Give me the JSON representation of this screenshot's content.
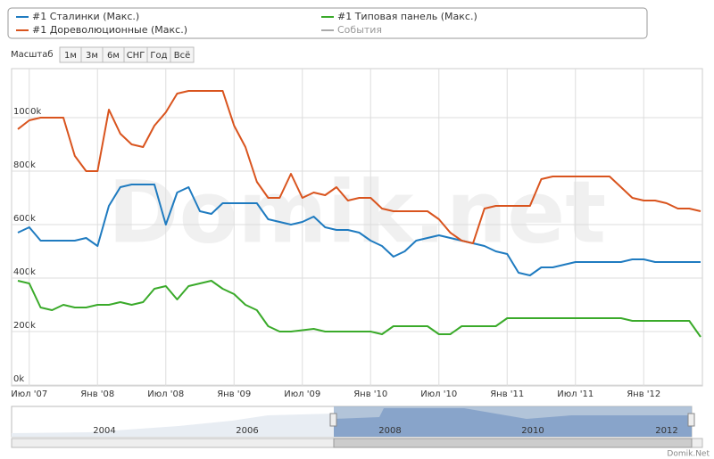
{
  "chart_data": {
    "type": "line",
    "watermark": "Domik.net",
    "credit": "Domik.Net",
    "zoom_label": "Масштаб",
    "zoom_buttons": [
      "1м",
      "3м",
      "6м",
      "СНГ",
      "Год",
      "Всё"
    ],
    "x": [
      "2007-06",
      "2007-07",
      "2007-08",
      "2007-09",
      "2007-10",
      "2007-11",
      "2007-12",
      "2008-01",
      "2008-02",
      "2008-03",
      "2008-04",
      "2008-05",
      "2008-06",
      "2008-07",
      "2008-08",
      "2008-09",
      "2008-10",
      "2008-11",
      "2008-12",
      "2009-01",
      "2009-02",
      "2009-03",
      "2009-04",
      "2009-05",
      "2009-06",
      "2009-07",
      "2009-08",
      "2009-09",
      "2009-10",
      "2009-11",
      "2009-12",
      "2010-01",
      "2010-02",
      "2010-03",
      "2010-04",
      "2010-05",
      "2010-06",
      "2010-07",
      "2010-08",
      "2010-09",
      "2010-10",
      "2010-11",
      "2010-12",
      "2011-01",
      "2011-02",
      "2011-03",
      "2011-04",
      "2011-05",
      "2011-06",
      "2011-07",
      "2011-08",
      "2011-09",
      "2011-10",
      "2011-11",
      "2011-12",
      "2012-01",
      "2012-02",
      "2012-03",
      "2012-04",
      "2012-05",
      "2012-06"
    ],
    "series": [
      {
        "name": "#1 Сталинки (Макс.)",
        "color": "#1f7bc0",
        "values": [
          570000,
          590000,
          540000,
          540000,
          540000,
          540000,
          550000,
          520000,
          670000,
          740000,
          750000,
          750000,
          750000,
          600000,
          720000,
          740000,
          650000,
          640000,
          680000,
          680000,
          680000,
          680000,
          620000,
          610000,
          600000,
          610000,
          630000,
          590000,
          580000,
          580000,
          570000,
          540000,
          520000,
          480000,
          500000,
          540000,
          550000,
          560000,
          550000,
          540000,
          530000,
          520000,
          500000,
          490000,
          420000,
          410000,
          440000,
          440000,
          450000,
          460000,
          460000,
          460000,
          460000,
          460000,
          470000,
          470000,
          460000,
          460000,
          460000,
          460000,
          460000
        ]
      },
      {
        "name": "#1 Дореволюционные (Макс.)",
        "color": "#d9541e",
        "values": [
          957000,
          990000,
          1000000,
          1000000,
          1000000,
          857000,
          800000,
          800000,
          1030000,
          940000,
          900000,
          890000,
          970000,
          1020000,
          1090000,
          1100000,
          1100000,
          1100000,
          1100000,
          970000,
          890000,
          760000,
          700000,
          700000,
          790000,
          700000,
          720000,
          710000,
          740000,
          690000,
          700000,
          700000,
          660000,
          650000,
          650000,
          650000,
          650000,
          620000,
          570000,
          540000,
          530000,
          660000,
          670000,
          670000,
          670000,
          670000,
          770000,
          780000,
          780000,
          780000,
          780000,
          780000,
          780000,
          740000,
          700000,
          690000,
          690000,
          680000,
          660000,
          660000,
          650000
        ]
      },
      {
        "name": "#1 Типовая панель (Макс.)",
        "color": "#3aaa2a",
        "values": [
          390000,
          380000,
          290000,
          280000,
          300000,
          290000,
          290000,
          300000,
          300000,
          310000,
          300000,
          310000,
          360000,
          370000,
          320000,
          370000,
          380000,
          390000,
          360000,
          340000,
          300000,
          280000,
          220000,
          200000,
          200000,
          205000,
          210000,
          200000,
          200000,
          200000,
          200000,
          200000,
          190000,
          220000,
          220000,
          220000,
          220000,
          190000,
          190000,
          220000,
          220000,
          220000,
          220000,
          250000,
          250000,
          250000,
          250000,
          250000,
          250000,
          250000,
          250000,
          250000,
          250000,
          250000,
          240000,
          240000,
          240000,
          240000,
          240000,
          240000,
          180000
        ]
      }
    ],
    "events": {
      "name": "События",
      "color": "#aaaaaa"
    },
    "xlim": [
      "2007-06",
      "2012-06"
    ],
    "xticks": [
      {
        "value": "2007-07",
        "label": "Июл '07"
      },
      {
        "value": "2008-01",
        "label": "Янв '08"
      },
      {
        "value": "2008-07",
        "label": "Июл '08"
      },
      {
        "value": "2009-01",
        "label": "Янв '09"
      },
      {
        "value": "2009-07",
        "label": "Июл '09"
      },
      {
        "value": "2010-01",
        "label": "Янв '10"
      },
      {
        "value": "2010-07",
        "label": "Июл '10"
      },
      {
        "value": "2011-01",
        "label": "Янв '11"
      },
      {
        "value": "2011-07",
        "label": "Июл '11"
      },
      {
        "value": "2012-01",
        "label": "Янв '12"
      }
    ],
    "ylim": [
      0,
      1180000
    ],
    "yticks": [
      {
        "value": 0,
        "label": "0k"
      },
      {
        "value": 200000,
        "label": "200k"
      },
      {
        "value": 400000,
        "label": "400k"
      },
      {
        "value": 600000,
        "label": "600k"
      },
      {
        "value": 800000,
        "label": "800k"
      },
      {
        "value": 1000000,
        "label": "1000k"
      }
    ],
    "grid": true,
    "navigator_labels": [
      "2004",
      "2006",
      "2008",
      "2010",
      "2012"
    ]
  }
}
